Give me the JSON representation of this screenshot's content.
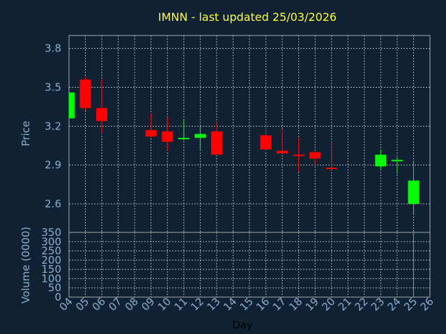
{
  "chart_data": [
    {
      "type": "candlestick",
      "title": "IMNN - last updated 25/03/2026",
      "ylabel": "Price",
      "ylim": [
        2.38,
        3.9
      ],
      "yticks": [
        "2.6",
        "2.9",
        "3.2",
        "3.5",
        "3.8"
      ],
      "ytick_values": [
        2.6,
        2.9,
        3.2,
        3.5,
        3.8
      ],
      "grid": true,
      "colors": {
        "up": "#00ff00",
        "down": "#ff0000",
        "background": "#0f2133",
        "title": "#ffff33",
        "axis_text": "#8ab0d0"
      },
      "candles": [
        {
          "day": "04",
          "open": 3.26,
          "high": 3.46,
          "low": 3.26,
          "close": 3.46
        },
        {
          "day": "05",
          "open": 3.56,
          "high": 3.58,
          "low": 3.32,
          "close": 3.34
        },
        {
          "day": "06",
          "open": 3.34,
          "high": 3.56,
          "low": 3.14,
          "close": 3.24
        },
        {
          "day": "09",
          "open": 3.17,
          "high": 3.3,
          "low": 3.11,
          "close": 3.12
        },
        {
          "day": "10",
          "open": 3.16,
          "high": 3.27,
          "low": 3.01,
          "close": 3.08
        },
        {
          "day": "11",
          "open": 3.11,
          "high": 3.25,
          "low": 3.09,
          "close": 3.11
        },
        {
          "day": "12",
          "open": 3.11,
          "high": 3.2,
          "low": 3.02,
          "close": 3.14
        },
        {
          "day": "13",
          "open": 3.16,
          "high": 3.23,
          "low": 2.98,
          "close": 2.98
        },
        {
          "day": "16",
          "open": 3.13,
          "high": 3.21,
          "low": 3.01,
          "close": 3.02
        },
        {
          "day": "17",
          "open": 3.01,
          "high": 3.18,
          "low": 2.99,
          "close": 2.99
        },
        {
          "day": "18",
          "open": 2.98,
          "high": 3.11,
          "low": 2.85,
          "close": 2.97
        },
        {
          "day": "19",
          "open": 3.0,
          "high": 3.0,
          "low": 2.9,
          "close": 2.95
        },
        {
          "day": "20",
          "open": 2.88,
          "high": 3.08,
          "low": 2.86,
          "close": 2.87
        },
        {
          "day": "23",
          "open": 2.89,
          "high": 3.02,
          "low": 2.87,
          "close": 2.98
        },
        {
          "day": "24",
          "open": 2.93,
          "high": 2.96,
          "low": 2.83,
          "close": 2.94
        },
        {
          "day": "25",
          "open": 2.6,
          "high": 2.93,
          "low": 2.52,
          "close": 2.78
        }
      ]
    },
    {
      "type": "bar",
      "ylabel": "Volume (0000)",
      "ylim": [
        0,
        350
      ],
      "yticks": [
        "0",
        "50",
        "100",
        "150",
        "200",
        "250",
        "300",
        "350"
      ],
      "ytick_values": [
        0,
        50,
        100,
        150,
        200,
        250,
        300,
        350
      ],
      "xlabel": "Day",
      "categories": [
        "04",
        "05",
        "06",
        "07",
        "08",
        "09",
        "10",
        "11",
        "12",
        "13",
        "14",
        "15",
        "16",
        "17",
        "18",
        "19",
        "20",
        "21",
        "22",
        "23",
        "24",
        "25",
        "26"
      ],
      "volumes": [
        {
          "day": "25",
          "value": 350,
          "color": "#00ff00"
        }
      ]
    }
  ]
}
